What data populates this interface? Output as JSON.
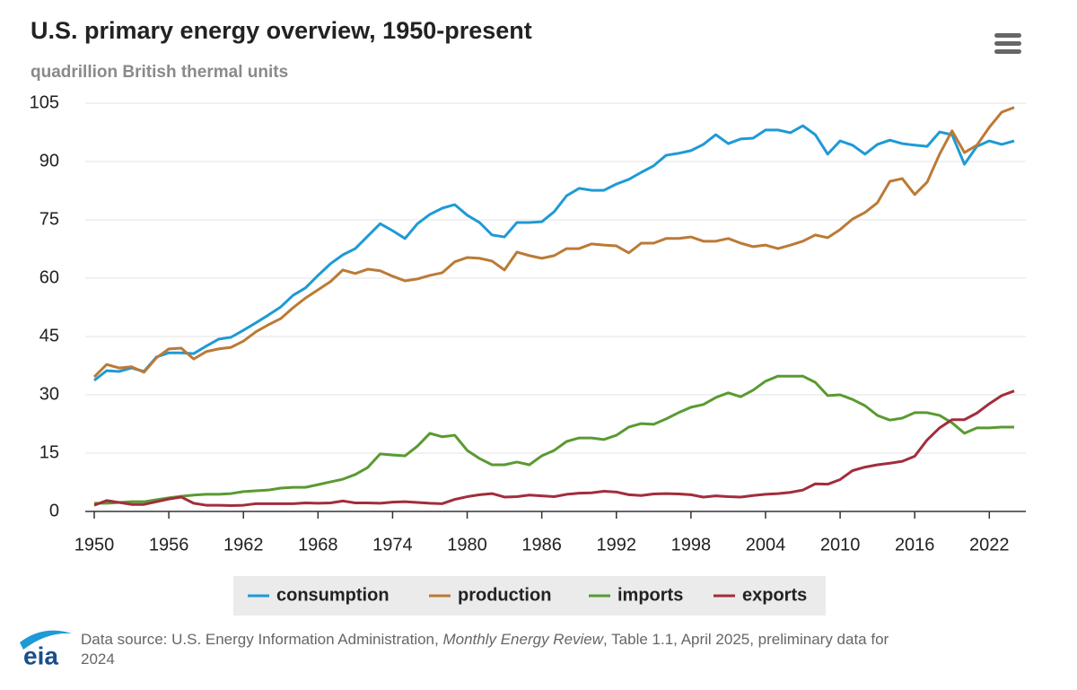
{
  "chart_data": {
    "type": "line",
    "title": "U.S. primary energy overview, 1950-present",
    "subtitle": "quadrillion British thermal units",
    "source_prefix": "Data source: U.S. Energy Information Administration, ",
    "source_italic": "Monthly Energy Review",
    "source_suffix": ", Table 1.1, April 2025, preliminary data for 2024",
    "logo": "eia",
    "x": [
      1950,
      1951,
      1952,
      1953,
      1954,
      1955,
      1956,
      1957,
      1958,
      1959,
      1960,
      1961,
      1962,
      1963,
      1964,
      1965,
      1966,
      1967,
      1968,
      1969,
      1970,
      1971,
      1972,
      1973,
      1974,
      1975,
      1976,
      1977,
      1978,
      1979,
      1980,
      1981,
      1982,
      1983,
      1984,
      1985,
      1986,
      1987,
      1988,
      1989,
      1990,
      1991,
      1992,
      1993,
      1994,
      1995,
      1996,
      1997,
      1998,
      1999,
      2000,
      2001,
      2002,
      2003,
      2004,
      2005,
      2006,
      2007,
      2008,
      2009,
      2010,
      2011,
      2012,
      2013,
      2014,
      2015,
      2016,
      2017,
      2018,
      2019,
      2020,
      2021,
      2022,
      2023,
      2024
    ],
    "xlim": [
      1950,
      2024
    ],
    "xticks": [
      1950,
      1956,
      1962,
      1968,
      1974,
      1980,
      1986,
      1992,
      1998,
      2004,
      2010,
      2016,
      2022
    ],
    "ylim": [
      0,
      105
    ],
    "yticks": [
      0,
      15,
      30,
      45,
      60,
      75,
      90,
      105
    ],
    "grid": true,
    "legend": "bottom",
    "series": [
      {
        "name": "consumption",
        "color": "#1e9ad6",
        "values": [
          33.7,
          36.2,
          36,
          36.9,
          36,
          39.7,
          40.8,
          40.8,
          40.6,
          42.5,
          44.3,
          44.8,
          46.6,
          48.5,
          50.5,
          52.6,
          55.6,
          57.5,
          60.7,
          63.7,
          66,
          67.6,
          70.8,
          74,
          72.2,
          70.2,
          74,
          76.4,
          78,
          78.9,
          76.2,
          74.3,
          71.1,
          70.6,
          74.3,
          74.3,
          74.5,
          77.1,
          81.2,
          83.1,
          82.6,
          82.6,
          84.2,
          85.4,
          87.2,
          88.9,
          91.6,
          92.1,
          92.8,
          94.4,
          96.9,
          94.6,
          95.8,
          96,
          98.1,
          98.1,
          97.4,
          99.2,
          96.9,
          91.9,
          95.3,
          94.2,
          91.9,
          94.4,
          95.5,
          94.6,
          94.2,
          93.9,
          97.6,
          96.9,
          89.3,
          93.9,
          95.3,
          94.4,
          95.3
        ]
      },
      {
        "name": "production",
        "color": "#bb7a36",
        "values": [
          34.6,
          37.8,
          36.9,
          37.2,
          35.8,
          39.5,
          41.8,
          42,
          39.2,
          41.1,
          41.8,
          42.2,
          43.8,
          46.2,
          48,
          49.6,
          52.4,
          54.9,
          57,
          59.1,
          62.1,
          61.2,
          62.3,
          61.9,
          60.5,
          59.3,
          59.8,
          60.7,
          61.4,
          64.2,
          65.3,
          65.1,
          64.4,
          62.1,
          66.7,
          65.8,
          65.1,
          65.8,
          67.6,
          67.6,
          68.8,
          68.5,
          68.3,
          66.5,
          69,
          69,
          70.2,
          70.2,
          70.6,
          69.5,
          69.5,
          70.2,
          69,
          68.1,
          68.5,
          67.6,
          68.5,
          69.5,
          71.1,
          70.4,
          72.5,
          75.2,
          76.9,
          79.4,
          84.9,
          85.6,
          81.5,
          84.7,
          91.9,
          97.9,
          92.3,
          94.2,
          98.8,
          102.7,
          103.9
        ]
      },
      {
        "name": "imports",
        "color": "#5a9a32",
        "values": [
          2.1,
          2.1,
          2.3,
          2.5,
          2.5,
          3,
          3.5,
          3.9,
          4.2,
          4.4,
          4.4,
          4.6,
          5.1,
          5.3,
          5.5,
          6,
          6.2,
          6.2,
          6.9,
          7.6,
          8.3,
          9.5,
          11.3,
          14.8,
          14.5,
          14.3,
          16.8,
          20.1,
          19.2,
          19.6,
          15.7,
          13.6,
          12,
          12,
          12.7,
          12,
          14.3,
          15.7,
          18,
          18.9,
          18.9,
          18.5,
          19.6,
          21.7,
          22.6,
          22.4,
          23.8,
          25.4,
          26.8,
          27.5,
          29.3,
          30.5,
          29.5,
          31.2,
          33.5,
          34.8,
          34.8,
          34.8,
          33.2,
          29.8,
          30,
          28.8,
          27.2,
          24.7,
          23.5,
          24,
          25.4,
          25.4,
          24.7,
          22.8,
          20.1,
          21.5,
          21.5,
          21.7,
          21.7
        ]
      },
      {
        "name": "exports",
        "color": "#a22d3c",
        "values": [
          1.6,
          2.8,
          2.3,
          1.8,
          1.8,
          2.5,
          3.2,
          3.7,
          2.1,
          1.6,
          1.6,
          1.5,
          1.6,
          2,
          2,
          2,
          2,
          2.2,
          2.1,
          2.2,
          2.7,
          2.2,
          2.2,
          2.1,
          2.4,
          2.5,
          2.3,
          2.1,
          2,
          3.1,
          3.8,
          4.3,
          4.6,
          3.7,
          3.8,
          4.2,
          4,
          3.8,
          4.4,
          4.7,
          4.8,
          5.2,
          5,
          4.3,
          4.1,
          4.5,
          4.6,
          4.5,
          4.3,
          3.7,
          4,
          3.8,
          3.7,
          4.1,
          4.4,
          4.6,
          4.9,
          5.5,
          7.1,
          7,
          8.2,
          10.5,
          11.4,
          12,
          12.4,
          12.9,
          14.2,
          18.4,
          21.5,
          23.6,
          23.6,
          25.3,
          27.7,
          29.8,
          31
        ]
      }
    ]
  }
}
